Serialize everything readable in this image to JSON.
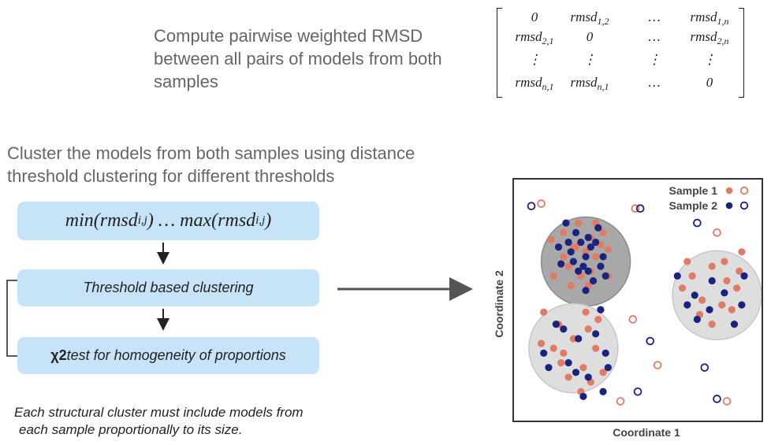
{
  "step1": {
    "text": "Compute pairwise weighted RMSD between all pairs of models from both samples"
  },
  "matrix": {
    "cells": [
      [
        "0",
        "rmsd1,2",
        "…",
        "rmsd1,n"
      ],
      [
        "rmsd2,1",
        "0",
        "…",
        "rmsd2,n"
      ],
      [
        "⋮",
        "⋮",
        "⋮",
        "⋮"
      ],
      [
        "rmsdn,1",
        "rmsdn,1",
        "…",
        "0"
      ]
    ]
  },
  "step2": {
    "text": "Cluster the models from both samples using distance threshold clustering for different thresholds"
  },
  "flow": {
    "range": {
      "min": "min(rmsd",
      "sub1": "i,j",
      "mid": ") … max(rmsd",
      "sub2": "i,j",
      "end": ")"
    },
    "clustering": "Threshold based clustering",
    "chi_symbol": "χ2",
    "chi_test": " test for homogeneity of proportions"
  },
  "note": {
    "line1": "Each structural cluster must include models from",
    "line2": "each sample proportionally to its size."
  },
  "colors": {
    "box": "#c7e3f8",
    "sample1": "#e07c66",
    "sample2": "#1a237e",
    "cluster_dark": "#a8a8a8",
    "cluster_light": "#dedede"
  },
  "chart_data": {
    "type": "scatter",
    "xlabel": "Coordinate 1",
    "ylabel": "Coordinate 2",
    "legend": {
      "placement": "top-right",
      "entries": [
        {
          "name": "Sample 1",
          "color": "#e07c66"
        },
        {
          "name": "Sample 2",
          "color": "#1a237e"
        }
      ]
    },
    "xlim": [
      0,
      100
    ],
    "ylim": [
      0,
      100
    ],
    "clusters": [
      {
        "cx": 29,
        "cy": 66,
        "r": 18,
        "shade": "dark"
      },
      {
        "cx": 82,
        "cy": 52,
        "r": 18,
        "shade": "light"
      },
      {
        "cx": 24,
        "cy": 30,
        "r": 18,
        "shade": "light"
      }
    ],
    "series": [
      {
        "name": "Sample 1",
        "filled": [
          [
            15,
            75
          ],
          [
            20,
            78
          ],
          [
            25,
            72
          ],
          [
            31,
            76
          ],
          [
            33,
            68
          ],
          [
            38,
            60
          ],
          [
            22,
            64
          ],
          [
            27,
            60
          ],
          [
            30,
            56
          ],
          [
            35,
            73
          ],
          [
            26,
            82
          ],
          [
            20,
            68
          ],
          [
            36,
            78
          ],
          [
            29,
            70
          ],
          [
            23,
            56
          ],
          [
            16,
            60
          ],
          [
            31,
            62
          ],
          [
            33,
            82
          ],
          [
            24,
            72
          ],
          [
            38,
            71
          ],
          [
            72,
            60
          ],
          [
            80,
            64
          ],
          [
            86,
            58
          ],
          [
            90,
            55
          ],
          [
            76,
            50
          ],
          [
            84,
            48
          ],
          [
            68,
            55
          ],
          [
            75,
            44
          ],
          [
            88,
            46
          ],
          [
            91,
            62
          ],
          [
            80,
            40
          ],
          [
            70,
            66
          ],
          [
            92,
            70
          ],
          [
            85,
            66
          ],
          [
            12,
            45
          ],
          [
            18,
            40
          ],
          [
            24,
            34
          ],
          [
            30,
            38
          ],
          [
            20,
            28
          ],
          [
            28,
            22
          ],
          [
            16,
            30
          ],
          [
            22,
            18
          ],
          [
            33,
            30
          ],
          [
            11,
            32
          ],
          [
            27,
            12
          ],
          [
            31,
            16
          ],
          [
            36,
            20
          ],
          [
            34,
            42
          ],
          [
            19,
            24
          ],
          [
            29,
            45
          ]
        ],
        "hollow": [
          [
            11,
            90
          ],
          [
            49,
            88
          ],
          [
            82,
            78
          ],
          [
            48,
            42
          ],
          [
            58,
            23
          ],
          [
            86,
            8
          ],
          [
            43,
            8
          ]
        ]
      },
      {
        "name": "Sample 2",
        "filled": [
          [
            21,
            82
          ],
          [
            23,
            70
          ],
          [
            27,
            74
          ],
          [
            29,
            68
          ],
          [
            31,
            72
          ],
          [
            25,
            78
          ],
          [
            33,
            74
          ],
          [
            35,
            64
          ],
          [
            19,
            65
          ],
          [
            28,
            64
          ],
          [
            24,
            66
          ],
          [
            36,
            68
          ],
          [
            26,
            62
          ],
          [
            32,
            58
          ],
          [
            30,
            76
          ],
          [
            22,
            74
          ],
          [
            18,
            72
          ],
          [
            34,
            80
          ],
          [
            30,
            62
          ],
          [
            37,
            60
          ],
          [
            66,
            60
          ],
          [
            73,
            52
          ],
          [
            79,
            46
          ],
          [
            85,
            53
          ],
          [
            93,
            60
          ],
          [
            89,
            40
          ],
          [
            74,
            42
          ],
          [
            92,
            48
          ],
          [
            80,
            58
          ],
          [
            70,
            48
          ],
          [
            29,
            54
          ],
          [
            26,
            34
          ],
          [
            37,
            28
          ],
          [
            22,
            24
          ],
          [
            30,
            18
          ],
          [
            38,
            22
          ],
          [
            14,
            22
          ],
          [
            25,
            20
          ],
          [
            17,
            40
          ],
          [
            33,
            36
          ],
          [
            35,
            46
          ],
          [
            28,
            10
          ],
          [
            20,
            38
          ],
          [
            12,
            28
          ],
          [
            36,
            12
          ]
        ],
        "hollow": [
          [
            7,
            89
          ],
          [
            51,
            88
          ],
          [
            74,
            82
          ],
          [
            55,
            33
          ],
          [
            77,
            22
          ],
          [
            50,
            12
          ],
          [
            82,
            9
          ]
        ]
      }
    ]
  }
}
